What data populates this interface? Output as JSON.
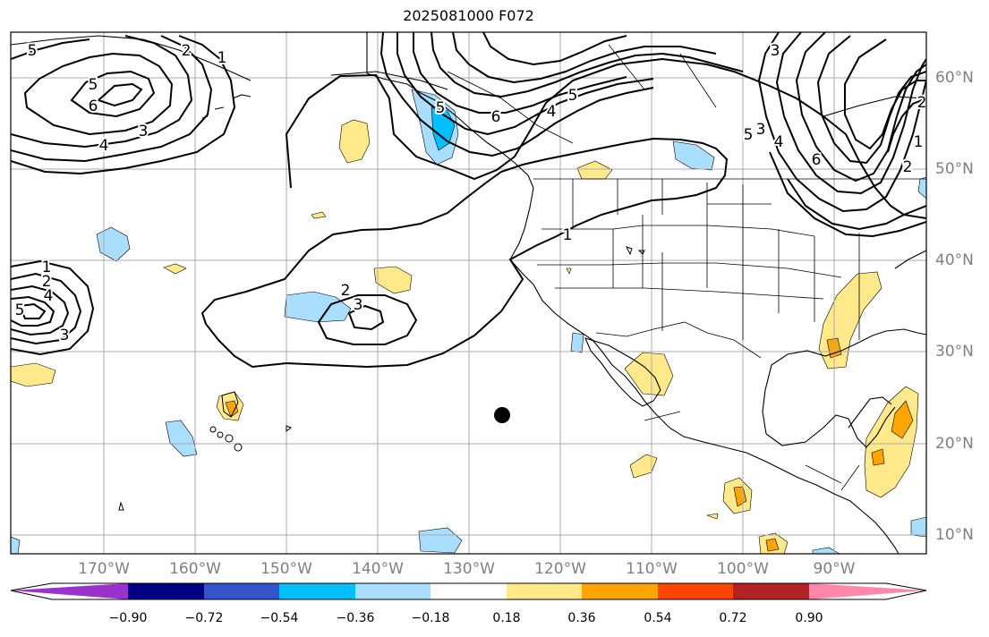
{
  "title": "2025081000 F072",
  "lat_labels": [
    "60°N",
    "50°N",
    "40°N",
    "30°N",
    "20°N",
    "10°N"
  ],
  "lon_labels": [
    "170°W",
    "160°W",
    "150°W",
    "140°W",
    "130°W",
    "120°W",
    "110°W",
    "100°W",
    "90°W"
  ],
  "colorbar": {
    "ticks": [
      "−0.90",
      "−0.72",
      "−0.54",
      "−0.36",
      "−0.18",
      "0.18",
      "0.36",
      "0.54",
      "0.72",
      "0.90"
    ],
    "colors": [
      "#9933cc",
      "#000080",
      "#3355cc",
      "#00bfff",
      "#aadeff",
      "#ffffff",
      "#ffe98a",
      "#ffa500",
      "#ff4500",
      "#b22222",
      "#ff88aa"
    ]
  },
  "contour_labels": [
    {
      "id": "c1",
      "text": "5"
    },
    {
      "id": "c2",
      "text": "2"
    },
    {
      "id": "c3",
      "text": "1"
    },
    {
      "id": "c4",
      "text": "5"
    },
    {
      "id": "c5",
      "text": "6"
    },
    {
      "id": "c6",
      "text": "4"
    },
    {
      "id": "c7",
      "text": "3"
    },
    {
      "id": "c8",
      "text": "5"
    },
    {
      "id": "c9",
      "text": "6"
    },
    {
      "id": "c10",
      "text": "4"
    },
    {
      "id": "c11",
      "text": "5"
    },
    {
      "id": "c12",
      "text": "3"
    },
    {
      "id": "c13",
      "text": "5"
    },
    {
      "id": "c14",
      "text": "4"
    },
    {
      "id": "c15",
      "text": "3"
    },
    {
      "id": "c16",
      "text": "6"
    },
    {
      "id": "c17",
      "text": "2"
    },
    {
      "id": "c18",
      "text": "1"
    },
    {
      "id": "c19",
      "text": "1"
    },
    {
      "id": "c20",
      "text": "2"
    },
    {
      "id": "c21",
      "text": "4"
    },
    {
      "id": "c22",
      "text": "5"
    },
    {
      "id": "c23",
      "text": "3"
    },
    {
      "id": "c24",
      "text": "2"
    },
    {
      "id": "c25",
      "text": "3"
    },
    {
      "id": "c26",
      "text": "1"
    },
    {
      "id": "c27",
      "text": "2"
    }
  ]
}
